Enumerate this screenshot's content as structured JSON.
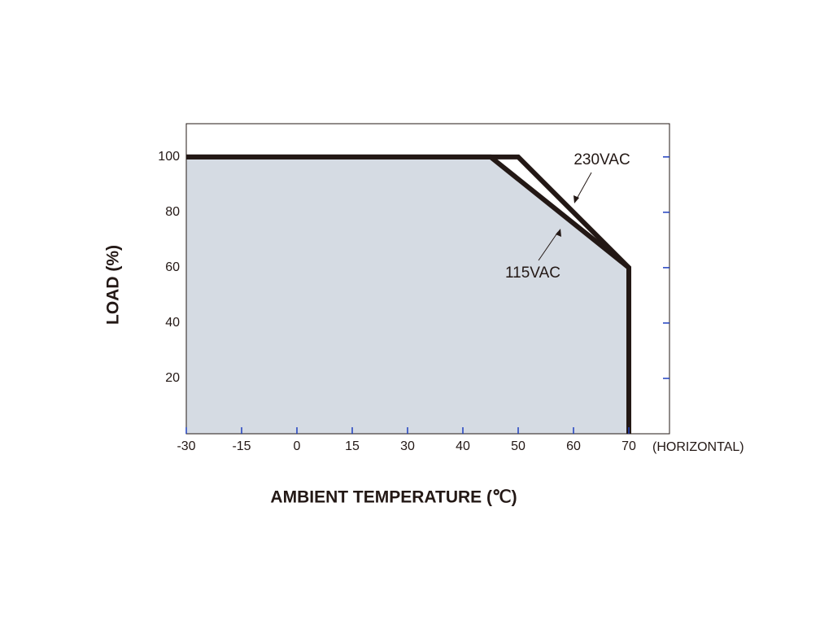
{
  "chart_data": {
    "type": "line",
    "xlabel": "AMBIENT TEMPERATURE (℃)",
    "ylabel": "LOAD (%)",
    "x_note": "(HORIZONTAL)",
    "xlim": [
      -30,
      77
    ],
    "ylim": [
      0,
      112
    ],
    "xticks": [
      -30,
      -15,
      0,
      15,
      30,
      40,
      50,
      60,
      70
    ],
    "yticks": [
      20,
      40,
      60,
      80,
      100
    ],
    "fill_color": "#d5dbe3",
    "tick_color": "#1f3fbf",
    "series": [
      {
        "name": "115VAC",
        "color": "#231815",
        "x": [
          -30,
          45,
          70,
          70
        ],
        "values": [
          100,
          100,
          60,
          0
        ]
      },
      {
        "name": "230VAC",
        "color": "#231815",
        "x": [
          -30,
          50,
          70
        ],
        "values": [
          100,
          100,
          60
        ]
      }
    ]
  }
}
